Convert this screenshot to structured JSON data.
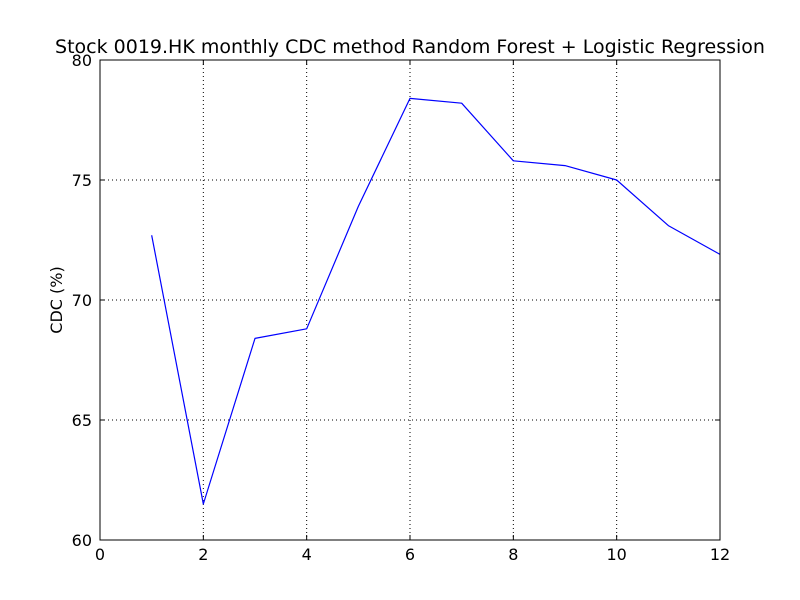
{
  "chart_data": {
    "type": "line",
    "title": "Stock 0019.HK monthly CDC method Random Forest + Logistic Regression",
    "xlabel": "",
    "ylabel": "CDC (%)",
    "xlim": [
      0,
      12
    ],
    "ylim": [
      60,
      80
    ],
    "x_ticks": [
      "0",
      "2",
      "4",
      "6",
      "8",
      "10",
      "12"
    ],
    "y_ticks": [
      "60",
      "65",
      "70",
      "75",
      "80"
    ],
    "grid": true,
    "series": [
      {
        "color": "#0000ff",
        "x": [
          1,
          2,
          3,
          4,
          5,
          6,
          7,
          8,
          9,
          10,
          11,
          12
        ],
        "y": [
          72.7,
          61.5,
          68.4,
          68.8,
          73.9,
          78.4,
          78.2,
          75.8,
          75.6,
          75.0,
          73.1,
          71.9
        ]
      }
    ]
  }
}
